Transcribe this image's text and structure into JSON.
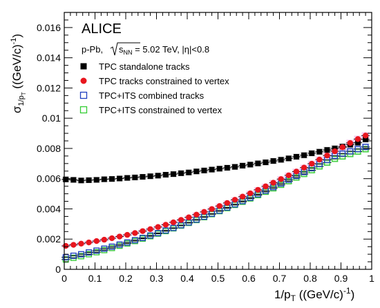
{
  "chart_data": {
    "type": "scatter",
    "experiment": "ALICE",
    "collision_label": "p-Pb, ",
    "energy_label": "s",
    "energy_sub": "NN",
    "energy_value": " = 5.02 TeV, |η|<0.8",
    "xlabel": "1/p",
    "xlabel_sub": "T",
    "xlabel_unit": " ((GeV/c)",
    "xlabel_sup": "-1",
    "xlabel_close": ")",
    "ylabel": "σ",
    "ylabel_sub": "1/p",
    "ylabel_subsub": "T",
    "ylabel_unit": " ((GeV/c)",
    "ylabel_sup": "-1",
    "ylabel_close": ")",
    "xlim": [
      0,
      1
    ],
    "ylim": [
      0,
      0.017
    ],
    "x_ticks": [
      "0",
      "0.1",
      "0.2",
      "0.3",
      "0.4",
      "0.5",
      "0.6",
      "0.7",
      "0.8",
      "0.9",
      "1"
    ],
    "y_ticks": [
      "0",
      "0.002",
      "0.004",
      "0.006",
      "0.008",
      "0.01",
      "0.012",
      "0.014",
      "0.016"
    ],
    "legend_position": "top-left",
    "x": [
      0.005,
      0.03,
      0.055,
      0.08,
      0.105,
      0.13,
      0.155,
      0.18,
      0.205,
      0.23,
      0.255,
      0.28,
      0.305,
      0.33,
      0.355,
      0.38,
      0.405,
      0.43,
      0.455,
      0.48,
      0.505,
      0.53,
      0.555,
      0.58,
      0.605,
      0.63,
      0.655,
      0.68,
      0.705,
      0.73,
      0.755,
      0.78,
      0.805,
      0.83,
      0.855,
      0.88,
      0.905,
      0.93,
      0.955,
      0.98
    ],
    "series": [
      {
        "name": "TPC standalone tracks",
        "marker": "filled-square",
        "color": "#000000",
        "values": [
          0.00595,
          0.00592,
          0.00588,
          0.0059,
          0.00592,
          0.00596,
          0.00598,
          0.00601,
          0.00605,
          0.00608,
          0.00612,
          0.00616,
          0.0062,
          0.00626,
          0.0063,
          0.00636,
          0.00641,
          0.00648,
          0.00654,
          0.0066,
          0.00666,
          0.00672,
          0.00678,
          0.00686,
          0.00693,
          0.00701,
          0.00708,
          0.00717,
          0.00725,
          0.00734,
          0.00745,
          0.00755,
          0.00768,
          0.00778,
          0.0079,
          0.008,
          0.00812,
          0.00825,
          0.00838,
          0.0086
        ]
      },
      {
        "name": "TPC tracks constrained to vertex",
        "marker": "filled-circle",
        "color": "#e8161e",
        "values": [
          0.00155,
          0.00162,
          0.0017,
          0.00178,
          0.00187,
          0.00196,
          0.00206,
          0.00217,
          0.00228,
          0.0024,
          0.00253,
          0.00266,
          0.0028,
          0.00295,
          0.00311,
          0.00327,
          0.00344,
          0.00362,
          0.0038,
          0.00399,
          0.00419,
          0.00439,
          0.0046,
          0.00481,
          0.00503,
          0.00526,
          0.00549,
          0.00573,
          0.00597,
          0.00622,
          0.00647,
          0.00673,
          0.00699,
          0.00726,
          0.00753,
          0.00781,
          0.00808,
          0.00836,
          0.00862,
          0.00885
        ]
      },
      {
        "name": "TPC+ITS combined tracks",
        "marker": "open-square",
        "color": "#1f3fbf",
        "values": [
          0.0008,
          0.0009,
          0.001,
          0.00112,
          0.00124,
          0.00137,
          0.0015,
          0.00164,
          0.00178,
          0.00193,
          0.00208,
          0.00224,
          0.0024,
          0.00257,
          0.00274,
          0.00292,
          0.0031,
          0.00329,
          0.00348,
          0.00368,
          0.00388,
          0.00409,
          0.0043,
          0.00452,
          0.00474,
          0.00497,
          0.0052,
          0.00544,
          0.00568,
          0.00593,
          0.00618,
          0.00644,
          0.0067,
          0.00697,
          0.00724,
          0.00751,
          0.00766,
          0.00781,
          0.00796,
          0.0081
        ]
      },
      {
        "name": "TPC+ITS constrained to vertex",
        "marker": "open-square",
        "color": "#33cc33",
        "values": [
          0.00065,
          0.00076,
          0.00087,
          0.001,
          0.00113,
          0.00127,
          0.00141,
          0.00156,
          0.00171,
          0.00187,
          0.00203,
          0.00219,
          0.00236,
          0.00253,
          0.00271,
          0.00289,
          0.00307,
          0.00326,
          0.00345,
          0.00365,
          0.00385,
          0.00405,
          0.00426,
          0.00447,
          0.00469,
          0.00491,
          0.00513,
          0.00536,
          0.00559,
          0.00583,
          0.00607,
          0.00631,
          0.00656,
          0.00681,
          0.00706,
          0.00731,
          0.00747,
          0.00763,
          0.00779,
          0.00795
        ]
      }
    ]
  }
}
